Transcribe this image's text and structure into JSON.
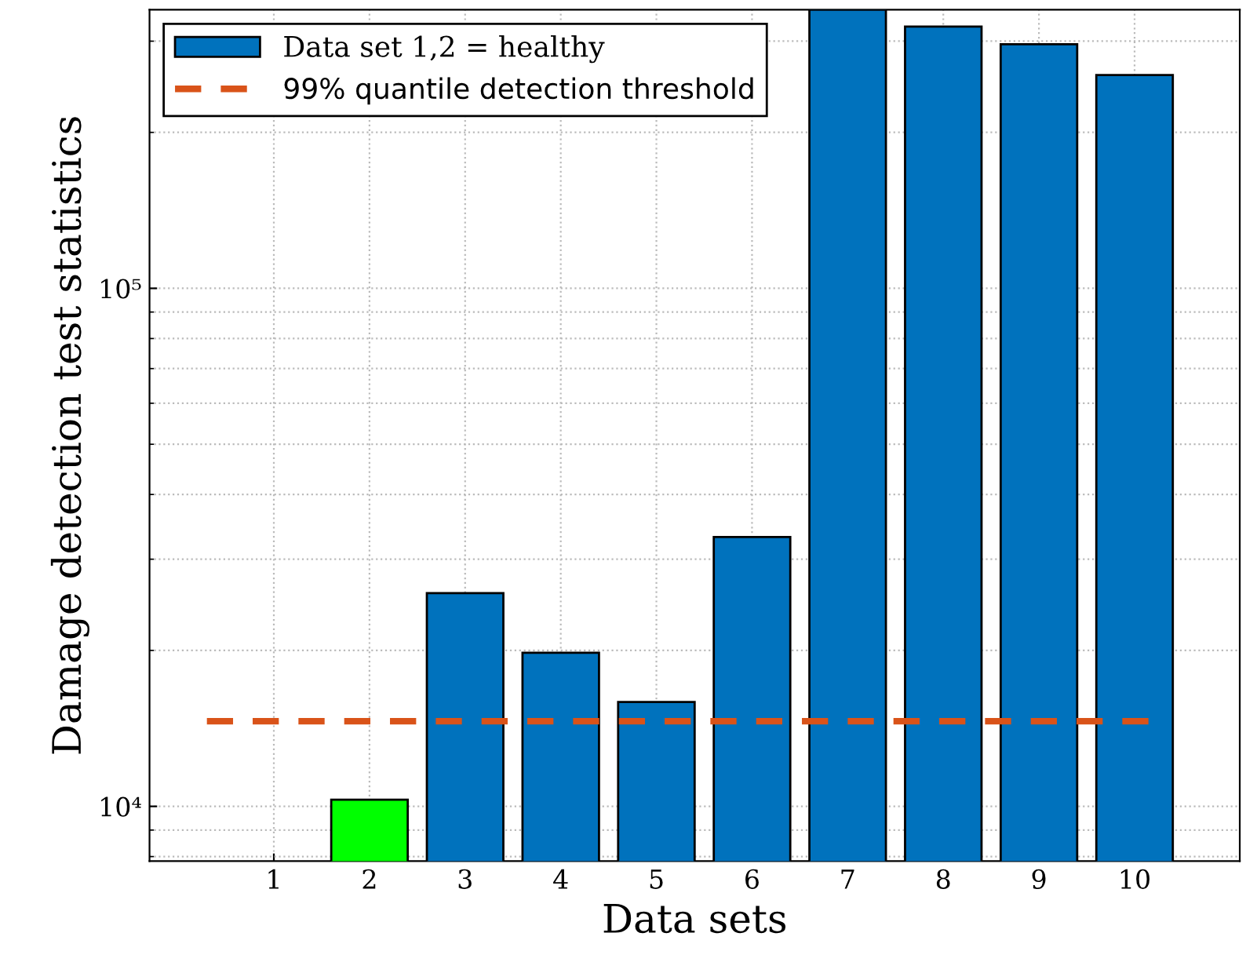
{
  "chart_data": {
    "type": "bar",
    "xlabel": "Data sets",
    "ylabel": "Damage detection test statistics",
    "categories": [
      "1",
      "2",
      "3",
      "4",
      "5",
      "6",
      "7",
      "8",
      "9",
      "10"
    ],
    "series": [
      {
        "name": "Data set 1,2 = healthy",
        "color": "#0072bd",
        "colors": [
          "#00ff00",
          "#00ff00",
          "#0072bd",
          "#0072bd",
          "#0072bd",
          "#0072bd",
          "#0072bd",
          "#0072bd",
          "#0072bd",
          "#0072bd"
        ],
        "values": [
          null,
          10300,
          25800,
          19800,
          15900,
          33100,
          345000,
          320000,
          296000,
          258000
        ]
      }
    ],
    "ref_lines": [
      {
        "axis": "y",
        "value": 14600,
        "label": "99% quantile detection threshold",
        "color": "#d95319",
        "line_style": "dashed"
      }
    ],
    "log": "y",
    "ylim": [
      7840,
      345000
    ],
    "yticks": [
      {
        "value": 10000,
        "label": "10⁴"
      },
      {
        "value": 100000,
        "label": "10⁵"
      }
    ],
    "grid": true,
    "legend": "top left"
  }
}
